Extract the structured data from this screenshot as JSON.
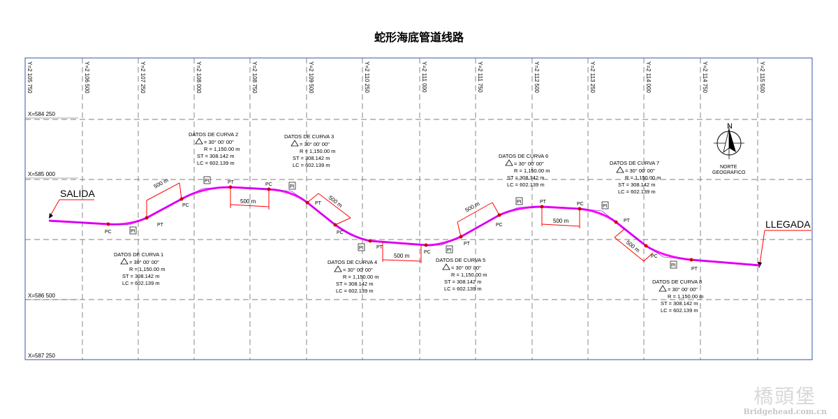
{
  "title": "蛇形海底管道线路",
  "grid": {
    "y_labels": [
      "Y=2 105 750",
      "Y=2 106 500",
      "Y=2 107 250",
      "Y=2 108 000",
      "Y=2 108 750",
      "Y=2 109 500",
      "Y=2 110 250",
      "Y=2 111 000",
      "Y=2 111 750",
      "Y=2 112 500",
      "Y=2 113 250",
      "Y=2 114 000",
      "Y=2 114 750",
      "Y=2 115 500"
    ],
    "x_labels": [
      "X=584 250",
      "X=585 000",
      "X=586 500",
      "X=587 250"
    ]
  },
  "start_label": "SALIDA",
  "end_label": "LLEGADA",
  "north": {
    "letter": "N",
    "line1": "NORTE",
    "line2": "GEOGRAFICO"
  },
  "curves": [
    {
      "title": "DATOS DE CURVA 1",
      "delta": "= 30° 00' 00\"",
      "r": "R  = 1,150.00  m",
      "st": "ST  = 308.142  m",
      "lc": "LC  = 602.139  m"
    },
    {
      "title": "DATOS DE CURVA 2",
      "delta": "= 30° 00' 00\"",
      "r": "R  = 1,150.00  m",
      "st": "ST  = 308.142  m",
      "lc": "LC  = 602.139  m"
    },
    {
      "title": "DATOS DE CURVA 3",
      "delta": "= 30° 00' 00\"",
      "r": "R  = 1,150.00  m",
      "st": "ST  = 308.142  m",
      "lc": "LC  = 602.139  m"
    },
    {
      "title": "DATOS DE CURVA 4",
      "delta": "= 30° 00' 00\"",
      "r": "R  = 1,150.00  m",
      "st": "ST  = 308.142  m",
      "lc": "LC  = 602.139  m"
    },
    {
      "title": "DATOS DE CURVA 5",
      "delta": "= 30° 00' 00\"",
      "r": "R  = 1,150.00  m",
      "st": "ST  = 308.142  m",
      "lc": "LC  = 602.139  m"
    },
    {
      "title": "DATOS DE CURVA 6",
      "delta": "= 30° 00' 00\"",
      "r": "R  = 1,150.00  m",
      "st": "ST  = 308.142  m",
      "lc": "LC  = 602.139  m"
    },
    {
      "title": "DATOS DE CURVA 7",
      "delta": "= 30° 00' 00\"",
      "r": "R  = 1,150.00  m",
      "st": "ST  = 308.142  m",
      "lc": "LC  = 602.139  m"
    },
    {
      "title": "DATOS DE CURVA 8",
      "delta": "= 30° 00' 00\"",
      "r": "R  = 1,150.00  m",
      "st": "ST  = 308.142  m",
      "lc": "LC  = 602.139  m"
    }
  ],
  "point_labels": {
    "pc": "PC",
    "pt": "PT",
    "pi": "PI"
  },
  "segment_label": "500  m",
  "watermark": {
    "cn": "橋頭堡",
    "url": "Bridgehead.com.cn"
  },
  "colors": {
    "pipeline": "#ff00ff",
    "dimension": "#ff0000",
    "grid": "#555555",
    "frame": "#3355aa"
  }
}
